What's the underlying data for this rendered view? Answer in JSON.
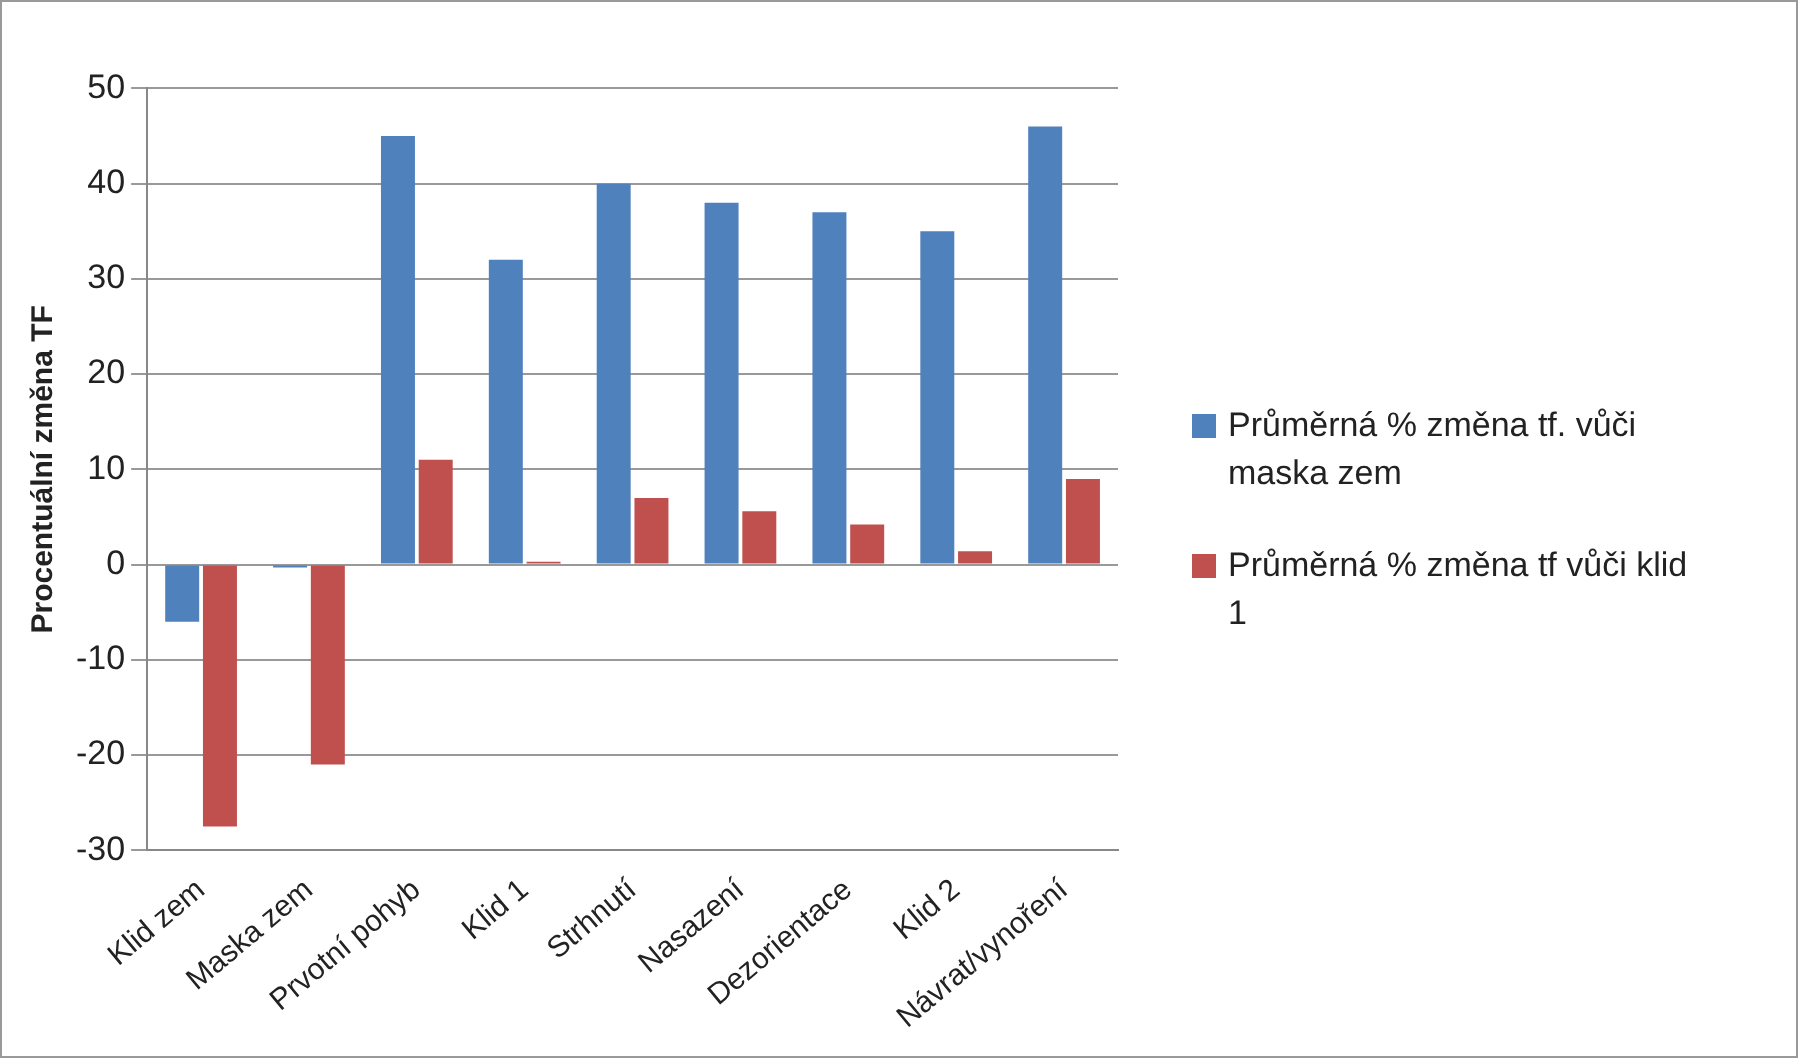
{
  "chart_data": {
    "type": "bar",
    "ylabel": "Procentuální změna TF",
    "categories": [
      "Klid zem",
      "Maska zem",
      "Prvotní pohyb",
      "Klid 1",
      "Strhnutí",
      "Nasazení",
      "Dezorientace",
      "Klid 2",
      "Návrat/vynoření"
    ],
    "series": [
      {
        "name": "Průměrná % změna tf. vůči maska zem",
        "color": "#4f81bd",
        "values": [
          -6,
          -0.3,
          45,
          32,
          40,
          38,
          37,
          35,
          46
        ]
      },
      {
        "name": "Průměrná % změna tf vůči klid 1",
        "color": "#c0504d",
        "values": [
          -27.5,
          -21,
          11,
          0.3,
          7,
          5.6,
          4.2,
          1.4,
          9
        ]
      }
    ],
    "ylim": [
      -30,
      50
    ],
    "yticks": [
      50,
      40,
      30,
      20,
      10,
      0,
      -10,
      -20,
      -30
    ],
    "grid": "y",
    "legend": "right"
  }
}
